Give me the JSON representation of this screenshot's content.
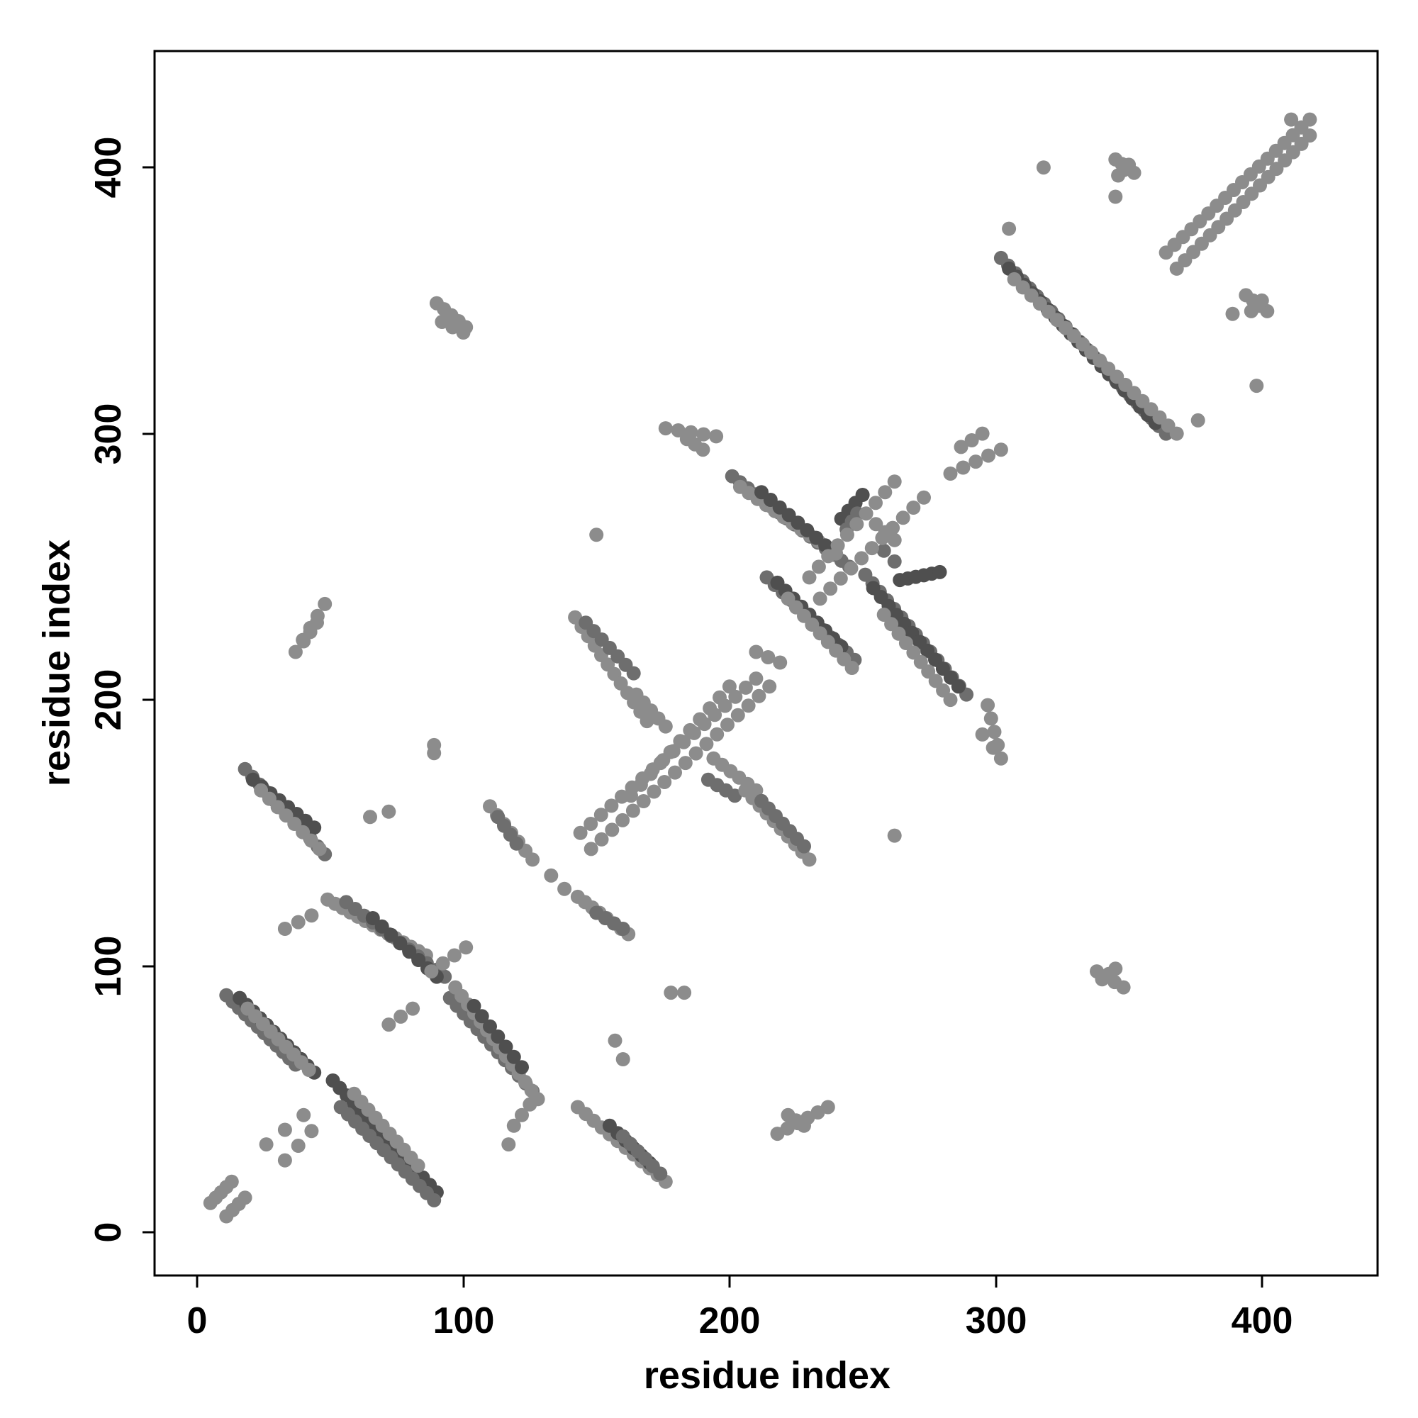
{
  "chart_data": {
    "type": "scatter",
    "title": "",
    "xlabel": "residue index",
    "ylabel": "residue index",
    "xlim": [
      -16,
      444
    ],
    "ylim": [
      -16,
      444
    ],
    "x_ticks": [
      "0",
      "100",
      "200",
      "300",
      "400"
    ],
    "y_ticks": [
      "0",
      "100",
      "200",
      "300",
      "400"
    ],
    "grid": false,
    "legend": "none",
    "colors": {
      "light": "#8c8c8c",
      "mid": "#6e6e6e",
      "dark": "#4f4f4f"
    },
    "segments": [
      {
        "x1": 5,
        "y1": 11,
        "x2": 13,
        "y2": 19,
        "n": 5,
        "shade": "light"
      },
      {
        "x1": 11,
        "y1": 6,
        "x2": 18,
        "y2": 13,
        "n": 4,
        "shade": "light"
      },
      {
        "x1": 11,
        "y1": 89,
        "x2": 37,
        "y2": 63,
        "n": 12,
        "shade": "mid"
      },
      {
        "x1": 16,
        "y1": 88,
        "x2": 44,
        "y2": 60,
        "n": 12,
        "shade": "dark"
      },
      {
        "x1": 19,
        "y1": 84,
        "x2": 42,
        "y2": 61,
        "n": 9,
        "shade": "light"
      },
      {
        "x1": 51,
        "y1": 57,
        "x2": 90,
        "y2": 15,
        "n": 16,
        "shade": "dark"
      },
      {
        "x1": 54,
        "y1": 47,
        "x2": 89,
        "y2": 12,
        "n": 14,
        "shade": "mid"
      },
      {
        "x1": 59,
        "y1": 52,
        "x2": 83,
        "y2": 25,
        "n": 10,
        "shade": "light"
      },
      {
        "x1": 26,
        "y1": 33,
        "x2": 40,
        "y2": 44,
        "n": 3,
        "shade": "light"
      },
      {
        "x1": 33,
        "y1": 27,
        "x2": 43,
        "y2": 38,
        "n": 3,
        "shade": "light"
      },
      {
        "x1": 18,
        "y1": 174,
        "x2": 48,
        "y2": 142,
        "n": 12,
        "shade": "mid"
      },
      {
        "x1": 21,
        "y1": 170,
        "x2": 44,
        "y2": 152,
        "n": 8,
        "shade": "dark"
      },
      {
        "x1": 24,
        "y1": 166,
        "x2": 46,
        "y2": 144,
        "n": 8,
        "shade": "light"
      },
      {
        "x1": 37,
        "y1": 218,
        "x2": 48,
        "y2": 236,
        "n": 5,
        "shade": "light"
      },
      {
        "x1": 40,
        "y1": 222,
        "x2": 45,
        "y2": 229,
        "n": 3,
        "shade": "light"
      },
      {
        "x1": 33,
        "y1": 114,
        "x2": 43,
        "y2": 119,
        "n": 3,
        "shade": "light"
      },
      {
        "x1": 49,
        "y1": 125,
        "x2": 86,
        "y2": 104,
        "n": 14,
        "shade": "light"
      },
      {
        "x1": 56,
        "y1": 124,
        "x2": 93,
        "y2": 96,
        "n": 12,
        "shade": "mid"
      },
      {
        "x1": 66,
        "y1": 118,
        "x2": 90,
        "y2": 96,
        "n": 8,
        "shade": "dark"
      },
      {
        "x1": 95,
        "y1": 88,
        "x2": 126,
        "y2": 53,
        "n": 13,
        "shade": "mid"
      },
      {
        "x1": 97,
        "y1": 92,
        "x2": 128,
        "y2": 50,
        "n": 14,
        "shade": "light"
      },
      {
        "x1": 104,
        "y1": 85,
        "x2": 122,
        "y2": 62,
        "n": 7,
        "shade": "dark"
      },
      {
        "x1": 88,
        "y1": 98,
        "x2": 101,
        "y2": 107,
        "n": 4,
        "shade": "light"
      },
      {
        "x1": 72,
        "y1": 78,
        "x2": 81,
        "y2": 84,
        "n": 3,
        "shade": "light"
      },
      {
        "x1": 119,
        "y1": 40,
        "x2": 125,
        "y2": 48,
        "n": 3,
        "shade": "light"
      },
      {
        "x1": 90,
        "y1": 349,
        "x2": 101,
        "y2": 340,
        "n": 5,
        "shade": "light"
      },
      {
        "x1": 92,
        "y1": 342,
        "x2": 100,
        "y2": 338,
        "n": 3,
        "shade": "light"
      },
      {
        "x1": 110,
        "y1": 160,
        "x2": 126,
        "y2": 140,
        "n": 7,
        "shade": "light"
      },
      {
        "x1": 113,
        "y1": 156,
        "x2": 120,
        "y2": 146,
        "n": 4,
        "shade": "mid"
      },
      {
        "x1": 143,
        "y1": 126,
        "x2": 162,
        "y2": 112,
        "n": 8,
        "shade": "light"
      },
      {
        "x1": 150,
        "y1": 120,
        "x2": 160,
        "y2": 114,
        "n": 4,
        "shade": "mid"
      },
      {
        "x1": 143,
        "y1": 47,
        "x2": 176,
        "y2": 19,
        "n": 12,
        "shade": "light"
      },
      {
        "x1": 155,
        "y1": 40,
        "x2": 170,
        "y2": 26,
        "n": 6,
        "shade": "dark"
      },
      {
        "x1": 160,
        "y1": 36,
        "x2": 174,
        "y2": 22,
        "n": 6,
        "shade": "mid"
      },
      {
        "x1": 142,
        "y1": 231,
        "x2": 169,
        "y2": 192,
        "n": 12,
        "shade": "light"
      },
      {
        "x1": 146,
        "y1": 229,
        "x2": 164,
        "y2": 210,
        "n": 7,
        "shade": "mid"
      },
      {
        "x1": 165,
        "y1": 202,
        "x2": 176,
        "y2": 190,
        "n": 5,
        "shade": "light"
      },
      {
        "x1": 194,
        "y1": 178,
        "x2": 210,
        "y2": 166,
        "n": 6,
        "shade": "light"
      },
      {
        "x1": 192,
        "y1": 170,
        "x2": 202,
        "y2": 164,
        "n": 4,
        "shade": "mid"
      },
      {
        "x1": 206,
        "y1": 166,
        "x2": 230,
        "y2": 140,
        "n": 10,
        "shade": "light"
      },
      {
        "x1": 212,
        "y1": 162,
        "x2": 228,
        "y2": 145,
        "n": 7,
        "shade": "mid"
      },
      {
        "x1": 144,
        "y1": 150,
        "x2": 210,
        "y2": 208,
        "n": 18,
        "shade": "light"
      },
      {
        "x1": 148,
        "y1": 144,
        "x2": 215,
        "y2": 205,
        "n": 18,
        "shade": "light"
      },
      {
        "x1": 163,
        "y1": 164,
        "x2": 200,
        "y2": 205,
        "n": 11,
        "shade": "light"
      },
      {
        "x1": 210,
        "y1": 218,
        "x2": 219,
        "y2": 214,
        "n": 3,
        "shade": "light"
      },
      {
        "x1": 176,
        "y1": 302,
        "x2": 195,
        "y2": 299,
        "n": 5,
        "shade": "light"
      },
      {
        "x1": 184,
        "y1": 298,
        "x2": 190,
        "y2": 294,
        "n": 3,
        "shade": "light"
      },
      {
        "x1": 201,
        "y1": 284,
        "x2": 245,
        "y2": 250,
        "n": 16,
        "shade": "mid"
      },
      {
        "x1": 204,
        "y1": 280,
        "x2": 240,
        "y2": 255,
        "n": 12,
        "shade": "light"
      },
      {
        "x1": 212,
        "y1": 278,
        "x2": 236,
        "y2": 258,
        "n": 8,
        "shade": "dark"
      },
      {
        "x1": 214,
        "y1": 246,
        "x2": 247,
        "y2": 215,
        "n": 12,
        "shade": "mid"
      },
      {
        "x1": 218,
        "y1": 244,
        "x2": 242,
        "y2": 220,
        "n": 9,
        "shade": "dark"
      },
      {
        "x1": 222,
        "y1": 238,
        "x2": 246,
        "y2": 212,
        "n": 9,
        "shade": "light"
      },
      {
        "x1": 251,
        "y1": 247,
        "x2": 289,
        "y2": 202,
        "n": 15,
        "shade": "mid"
      },
      {
        "x1": 254,
        "y1": 242,
        "x2": 286,
        "y2": 205,
        "n": 12,
        "shade": "dark"
      },
      {
        "x1": 258,
        "y1": 232,
        "x2": 283,
        "y2": 200,
        "n": 10,
        "shade": "light"
      },
      {
        "x1": 242,
        "y1": 268,
        "x2": 250,
        "y2": 277,
        "n": 4,
        "shade": "dark"
      },
      {
        "x1": 244,
        "y1": 264,
        "x2": 248,
        "y2": 270,
        "n": 3,
        "shade": "mid"
      },
      {
        "x1": 255,
        "y1": 266,
        "x2": 262,
        "y2": 260,
        "n": 3,
        "shade": "light"
      },
      {
        "x1": 258,
        "y1": 256,
        "x2": 262,
        "y2": 252,
        "n": 2,
        "shade": "mid"
      },
      {
        "x1": 264,
        "y1": 245,
        "x2": 279,
        "y2": 248,
        "n": 6,
        "shade": "dark"
      },
      {
        "x1": 230,
        "y1": 246,
        "x2": 262,
        "y2": 282,
        "n": 10,
        "shade": "light"
      },
      {
        "x1": 234,
        "y1": 238,
        "x2": 273,
        "y2": 276,
        "n": 11,
        "shade": "light"
      },
      {
        "x1": 283,
        "y1": 285,
        "x2": 302,
        "y2": 294,
        "n": 5,
        "shade": "light"
      },
      {
        "x1": 287,
        "y1": 295,
        "x2": 295,
        "y2": 300,
        "n": 3,
        "shade": "light"
      },
      {
        "x1": 297,
        "y1": 198,
        "x2": 302,
        "y2": 178,
        "n": 5,
        "shade": "light"
      },
      {
        "x1": 295,
        "y1": 187,
        "x2": 299,
        "y2": 182,
        "n": 2,
        "shade": "light"
      },
      {
        "x1": 302,
        "y1": 366,
        "x2": 364,
        "y2": 300,
        "n": 24,
        "shade": "mid"
      },
      {
        "x1": 305,
        "y1": 362,
        "x2": 360,
        "y2": 304,
        "n": 20,
        "shade": "dark"
      },
      {
        "x1": 307,
        "y1": 358,
        "x2": 368,
        "y2": 300,
        "n": 20,
        "shade": "light"
      },
      {
        "x1": 364,
        "y1": 368,
        "x2": 418,
        "y2": 418,
        "n": 18,
        "shade": "light"
      },
      {
        "x1": 368,
        "y1": 362,
        "x2": 418,
        "y2": 412,
        "n": 17,
        "shade": "light"
      },
      {
        "x1": 345,
        "y1": 403,
        "x2": 352,
        "y2": 398,
        "n": 4,
        "shade": "light"
      },
      {
        "x1": 346,
        "y1": 397,
        "x2": 350,
        "y2": 401,
        "n": 3,
        "shade": "light"
      },
      {
        "x1": 394,
        "y1": 352,
        "x2": 402,
        "y2": 346,
        "n": 4,
        "shade": "light"
      },
      {
        "x1": 396,
        "y1": 346,
        "x2": 400,
        "y2": 350,
        "n": 3,
        "shade": "light"
      },
      {
        "x1": 338,
        "y1": 98,
        "x2": 348,
        "y2": 92,
        "n": 4,
        "shade": "light"
      },
      {
        "x1": 340,
        "y1": 95,
        "x2": 345,
        "y2": 99,
        "n": 3,
        "shade": "light"
      },
      {
        "x1": 218,
        "y1": 37,
        "x2": 237,
        "y2": 47,
        "n": 6,
        "shade": "light"
      },
      {
        "x1": 222,
        "y1": 44,
        "x2": 228,
        "y2": 40,
        "n": 3,
        "shade": "light"
      },
      {
        "x1": 178,
        "y1": 90,
        "x2": 183,
        "y2": 90,
        "n": 2,
        "shade": "light"
      }
    ],
    "points": [
      {
        "x": 117,
        "y": 33,
        "shade": "light"
      },
      {
        "x": 89,
        "y": 183,
        "shade": "light"
      },
      {
        "x": 89,
        "y": 180,
        "shade": "light"
      },
      {
        "x": 65,
        "y": 156,
        "shade": "light"
      },
      {
        "x": 72,
        "y": 158,
        "shade": "light"
      },
      {
        "x": 150,
        "y": 262,
        "shade": "light"
      },
      {
        "x": 133,
        "y": 134,
        "shade": "light"
      },
      {
        "x": 138,
        "y": 129,
        "shade": "light"
      },
      {
        "x": 157,
        "y": 72,
        "shade": "light"
      },
      {
        "x": 160,
        "y": 65,
        "shade": "light"
      },
      {
        "x": 262,
        "y": 149,
        "shade": "light"
      },
      {
        "x": 318,
        "y": 400,
        "shade": "light"
      },
      {
        "x": 305,
        "y": 377,
        "shade": "light"
      },
      {
        "x": 376,
        "y": 305,
        "shade": "light"
      },
      {
        "x": 389,
        "y": 345,
        "shade": "light"
      },
      {
        "x": 398,
        "y": 318,
        "shade": "light"
      },
      {
        "x": 345,
        "y": 389,
        "shade": "light"
      },
      {
        "x": 411,
        "y": 418,
        "shade": "light"
      }
    ]
  }
}
